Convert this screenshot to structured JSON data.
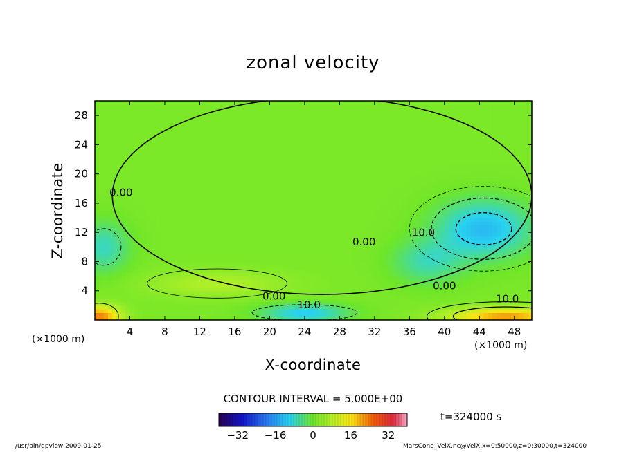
{
  "chart_data": {
    "type": "heatmap",
    "title": "zonal velocity",
    "xlabel": "X-coordinate",
    "ylabel": "Z-coordinate",
    "x_unit_label": "(×1000 m)",
    "xlim": [
      0,
      50
    ],
    "ylim": [
      0,
      30
    ],
    "x_ticks": [
      4,
      8,
      12,
      16,
      20,
      24,
      28,
      32,
      36,
      40,
      44,
      48
    ],
    "y_ticks": [
      4,
      8,
      12,
      16,
      20,
      24,
      28
    ],
    "contour_interval_text": "CONTOUR INTERVAL = 5.000E+00",
    "time_text": "t=324000 s",
    "colorbar": {
      "range": [
        -40,
        40
      ],
      "ticks": [
        -32,
        -16,
        0,
        16,
        32
      ]
    },
    "contour_labels": [
      {
        "text": "0.00",
        "x": 3.0,
        "z": 17.0
      },
      {
        "text": "0.00",
        "x": 30.8,
        "z": 10.2
      },
      {
        "text": "10.0",
        "x": 37.6,
        "z": 11.5
      },
      {
        "text": "0.00",
        "x": 40.0,
        "z": 4.2
      },
      {
        "text": "10.0",
        "x": 47.2,
        "z": 2.4
      },
      {
        "text": "0.00",
        "x": 20.5,
        "z": 2.8
      },
      {
        "text": "10.0",
        "x": 24.5,
        "z": 1.6
      }
    ],
    "field_features": [
      {
        "kind": "min",
        "x": 44.5,
        "z": 12.5,
        "value": -14
      },
      {
        "kind": "min",
        "x": 1.0,
        "z": 10.0,
        "value": -9
      },
      {
        "kind": "min",
        "x": 24.0,
        "z": 1.0,
        "value": -12
      },
      {
        "kind": "max",
        "x": 47.0,
        "z": 0.5,
        "value": 20
      },
      {
        "kind": "max",
        "x": 0.5,
        "z": 0.5,
        "value": 22
      },
      {
        "kind": "max",
        "x": 14.0,
        "z": 5.0,
        "value": 6
      }
    ]
  },
  "footer": {
    "left": "/usr/bin/gpview  2009-01-25",
    "right": "MarsCond_VelX.nc@VelX,x=0:50000,z=0:30000,t=324000"
  }
}
